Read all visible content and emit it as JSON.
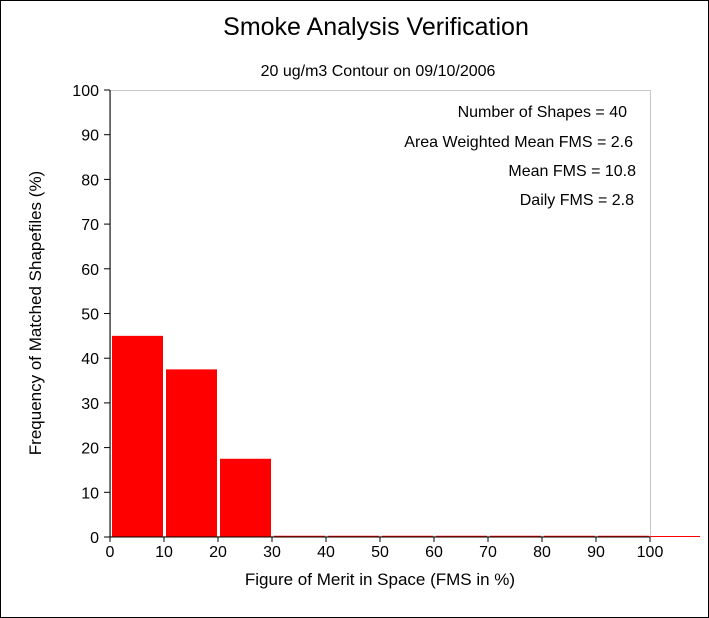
{
  "chart_data": {
    "type": "bar",
    "title": "Smoke Analysis Verification",
    "subtitle": "20 ug/m3 Contour on 09/10/2006",
    "xlabel": "Figure of Merit in Space (FMS in %)",
    "ylabel": "Frequency of Matched Shapefiles (%)",
    "xlim": [
      0,
      100
    ],
    "ylim": [
      0,
      100
    ],
    "xticks": [
      "0",
      "10",
      "20",
      "30",
      "40",
      "50",
      "60",
      "70",
      "80",
      "90",
      "100"
    ],
    "yticks": [
      "0",
      "10",
      "20",
      "30",
      "40",
      "50",
      "60",
      "70",
      "80",
      "90",
      "100"
    ],
    "bin_width": 10,
    "bins": [
      {
        "range": [
          0,
          10
        ],
        "value": 45
      },
      {
        "range": [
          10,
          20
        ],
        "value": 37.5
      },
      {
        "range": [
          20,
          30
        ],
        "value": 17.5
      },
      {
        "range": [
          30,
          40
        ],
        "value": 0
      },
      {
        "range": [
          40,
          50
        ],
        "value": 0
      },
      {
        "range": [
          50,
          60
        ],
        "value": 0
      },
      {
        "range": [
          60,
          70
        ],
        "value": 0
      },
      {
        "range": [
          70,
          80
        ],
        "value": 0
      },
      {
        "range": [
          80,
          90
        ],
        "value": 0
      },
      {
        "range": [
          90,
          100
        ],
        "value": 0
      }
    ],
    "bar_color": "#ff0000",
    "annotations": [
      "Number of Shapes = 40",
      "Area Weighted Mean FMS = 2.6",
      "Mean FMS = 10.8",
      "Daily FMS = 2.8"
    ],
    "grid": false,
    "legend": "none"
  }
}
